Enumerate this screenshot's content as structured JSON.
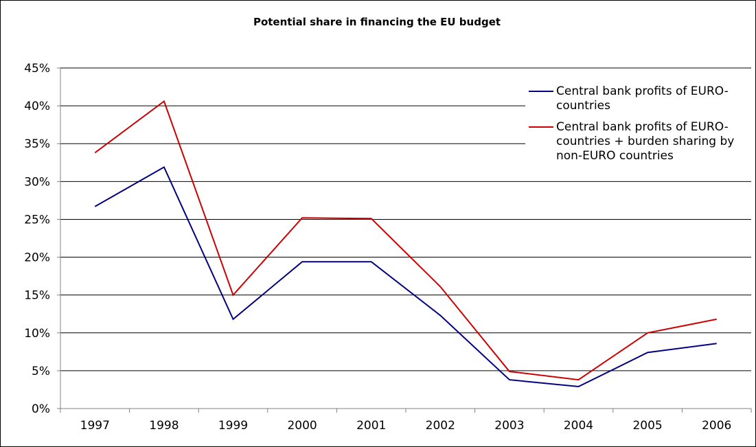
{
  "chart_data": {
    "type": "line",
    "title": "Potential share in financing the EU budget",
    "xlabel": "",
    "ylabel": "",
    "categories": [
      "1997",
      "1998",
      "1999",
      "2000",
      "2001",
      "2002",
      "2003",
      "2004",
      "2005",
      "2006"
    ],
    "ylim": [
      0,
      45
    ],
    "yticks": [
      0,
      5,
      10,
      15,
      20,
      25,
      30,
      35,
      40,
      45
    ],
    "ytick_labels": [
      "0%",
      "5%",
      "10%",
      "15%",
      "20%",
      "25%",
      "30%",
      "35%",
      "40%",
      "45%"
    ],
    "grid": "horizontal",
    "legend_position": "top-right",
    "series": [
      {
        "name": "Central bank profits of EURO-countries",
        "legend_lines": [
          "Central bank profits of EURO-",
          "countries"
        ],
        "color": "#000080",
        "values": [
          26.7,
          31.9,
          11.8,
          19.4,
          19.4,
          12.3,
          3.8,
          2.9,
          7.4,
          8.6
        ]
      },
      {
        "name": "Central bank profits of EURO-countries + burden sharing by non-EURO countries",
        "legend_lines": [
          "Central bank profits of EURO-",
          "countries + burden sharing by",
          "non-EURO countries"
        ],
        "color": "#cc0000",
        "values": [
          33.8,
          40.6,
          15.0,
          25.2,
          25.1,
          16.1,
          4.9,
          3.8,
          10.0,
          11.8
        ]
      }
    ]
  }
}
